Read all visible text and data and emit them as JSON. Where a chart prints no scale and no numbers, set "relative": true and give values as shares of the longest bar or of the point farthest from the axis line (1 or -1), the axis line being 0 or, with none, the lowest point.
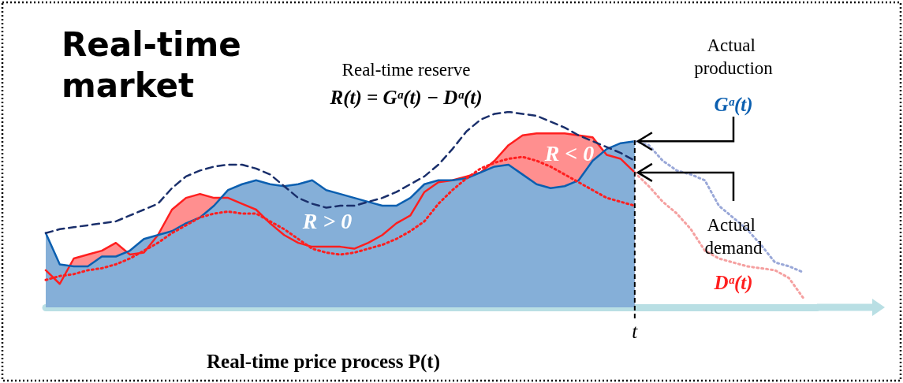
{
  "chart_data": {
    "type": "area",
    "relative": true,
    "title": "Real-time market",
    "xlabel": "Real-time price process P(t)",
    "categories": [
      null,
      null,
      null,
      null,
      null,
      null,
      null,
      null,
      null,
      null,
      null,
      null,
      null,
      null,
      null,
      null,
      null,
      null,
      null,
      null,
      null,
      null,
      null,
      null,
      null,
      null,
      null,
      null,
      null,
      null,
      null,
      null,
      null,
      null,
      null,
      null,
      null,
      null,
      null,
      null,
      null,
      null,
      null,
      null,
      null,
      null,
      null,
      null,
      null,
      null,
      null,
      null,
      null,
      null,
      null,
      null
    ],
    "grid": false,
    "marker": "none",
    "annotations": [
      "Real-time reserve",
      "R(t) = Gᵃ(t) − Dᵃ(t)",
      "Actual production",
      "Gᵃ(t)",
      "Actual demand",
      "Dᵃ(t)",
      "R > 0",
      "R < 0",
      "t"
    ],
    "series": [
      {
        "type": "area",
        "color": "#ff1f1f",
        "line_style": "solid",
        "values": [
          0.19,
          0.12,
          0.25,
          0.27,
          0.29,
          0.33,
          0.27,
          0.28,
          0.37,
          0.5,
          0.56,
          0.58,
          0.56,
          0.56,
          0.53,
          0.5,
          0.43,
          0.37,
          0.33,
          0.31,
          0.31,
          0.31,
          0.3,
          0.33,
          0.37,
          0.43,
          0.47,
          0.59,
          0.64,
          0.65,
          0.67,
          0.69,
          0.75,
          0.83,
          0.88,
          0.89,
          0.89,
          0.89,
          0.88,
          0.87,
          0.78,
          0.76,
          0.69,
          null,
          null,
          null,
          null,
          null,
          null,
          null,
          null,
          null,
          null,
          null,
          null,
          null
        ]
      },
      {
        "type": "area",
        "color": "#0b5fb0",
        "line_style": "solid",
        "values": [
          0.38,
          0.22,
          0.21,
          0.21,
          0.26,
          0.26,
          0.29,
          0.35,
          0.37,
          0.39,
          0.43,
          0.46,
          0.52,
          0.6,
          0.63,
          0.65,
          0.63,
          0.62,
          0.63,
          0.65,
          0.6,
          0.58,
          0.56,
          0.54,
          0.52,
          0.52,
          0.56,
          0.63,
          0.65,
          0.65,
          0.66,
          0.69,
          0.72,
          0.73,
          0.68,
          0.63,
          0.61,
          0.62,
          0.65,
          0.75,
          0.81,
          0.84,
          0.85,
          null,
          null,
          null,
          null,
          null,
          null,
          null,
          null,
          null,
          null,
          null,
          null,
          null
        ]
      },
      {
        "type": "line",
        "color": "#1a2f6b",
        "line_style": "dashed",
        "values": [
          0.38,
          0.4,
          0.41,
          0.42,
          0.43,
          0.44,
          0.47,
          0.5,
          0.53,
          0.61,
          0.67,
          0.7,
          0.72,
          0.73,
          0.73,
          0.71,
          0.68,
          0.62,
          0.56,
          0.53,
          0.51,
          0.52,
          0.52,
          0.54,
          0.56,
          0.59,
          0.63,
          0.67,
          0.73,
          0.81,
          0.9,
          0.96,
          0.99,
          1,
          0.99,
          0.98,
          0.95,
          0.92,
          0.88,
          0.85,
          0.82,
          0.79,
          0.75,
          null,
          null,
          null,
          null,
          null,
          null,
          null,
          null,
          null,
          null,
          null,
          null,
          null
        ]
      },
      {
        "type": "line",
        "color": "#ff1f1f",
        "line_style": "dotted",
        "values": [
          0.14,
          0.16,
          0.17,
          0.19,
          0.2,
          0.22,
          0.25,
          0.29,
          0.33,
          0.38,
          0.42,
          0.46,
          0.48,
          0.49,
          0.48,
          0.48,
          0.44,
          0.4,
          0.35,
          0.3,
          0.28,
          0.27,
          0.28,
          0.3,
          0.32,
          0.35,
          0.39,
          0.44,
          0.53,
          0.6,
          0.66,
          0.71,
          0.74,
          0.76,
          0.77,
          0.75,
          0.72,
          0.68,
          0.64,
          0.6,
          0.56,
          0.54,
          0.52,
          null,
          null,
          null,
          null,
          null,
          null,
          null,
          null,
          null,
          null,
          null,
          null,
          null
        ]
      },
      {
        "type": "line",
        "color": "#9aa8d8",
        "line_style": "dotted",
        "values": [
          null,
          null,
          null,
          null,
          null,
          null,
          null,
          null,
          null,
          null,
          null,
          null,
          null,
          null,
          null,
          null,
          null,
          null,
          null,
          null,
          null,
          null,
          null,
          null,
          null,
          null,
          null,
          null,
          null,
          null,
          null,
          null,
          null,
          null,
          null,
          null,
          null,
          null,
          null,
          null,
          null,
          null,
          0.85,
          0.83,
          0.75,
          0.7,
          0.68,
          0.65,
          0.52,
          0.46,
          0.4,
          0.32,
          0.23,
          0.21,
          0.18,
          null
        ]
      },
      {
        "type": "line",
        "color": "#f5a0a0",
        "line_style": "dotted",
        "values": [
          null,
          null,
          null,
          null,
          null,
          null,
          null,
          null,
          null,
          null,
          null,
          null,
          null,
          null,
          null,
          null,
          null,
          null,
          null,
          null,
          null,
          null,
          null,
          null,
          null,
          null,
          null,
          null,
          null,
          null,
          null,
          null,
          null,
          null,
          null,
          null,
          null,
          null,
          null,
          null,
          null,
          null,
          0.69,
          0.62,
          0.54,
          0.48,
          0.4,
          0.29,
          0.25,
          0.23,
          0.21,
          0.2,
          0.19,
          0.15,
          0.05,
          null
        ]
      }
    ]
  }
}
